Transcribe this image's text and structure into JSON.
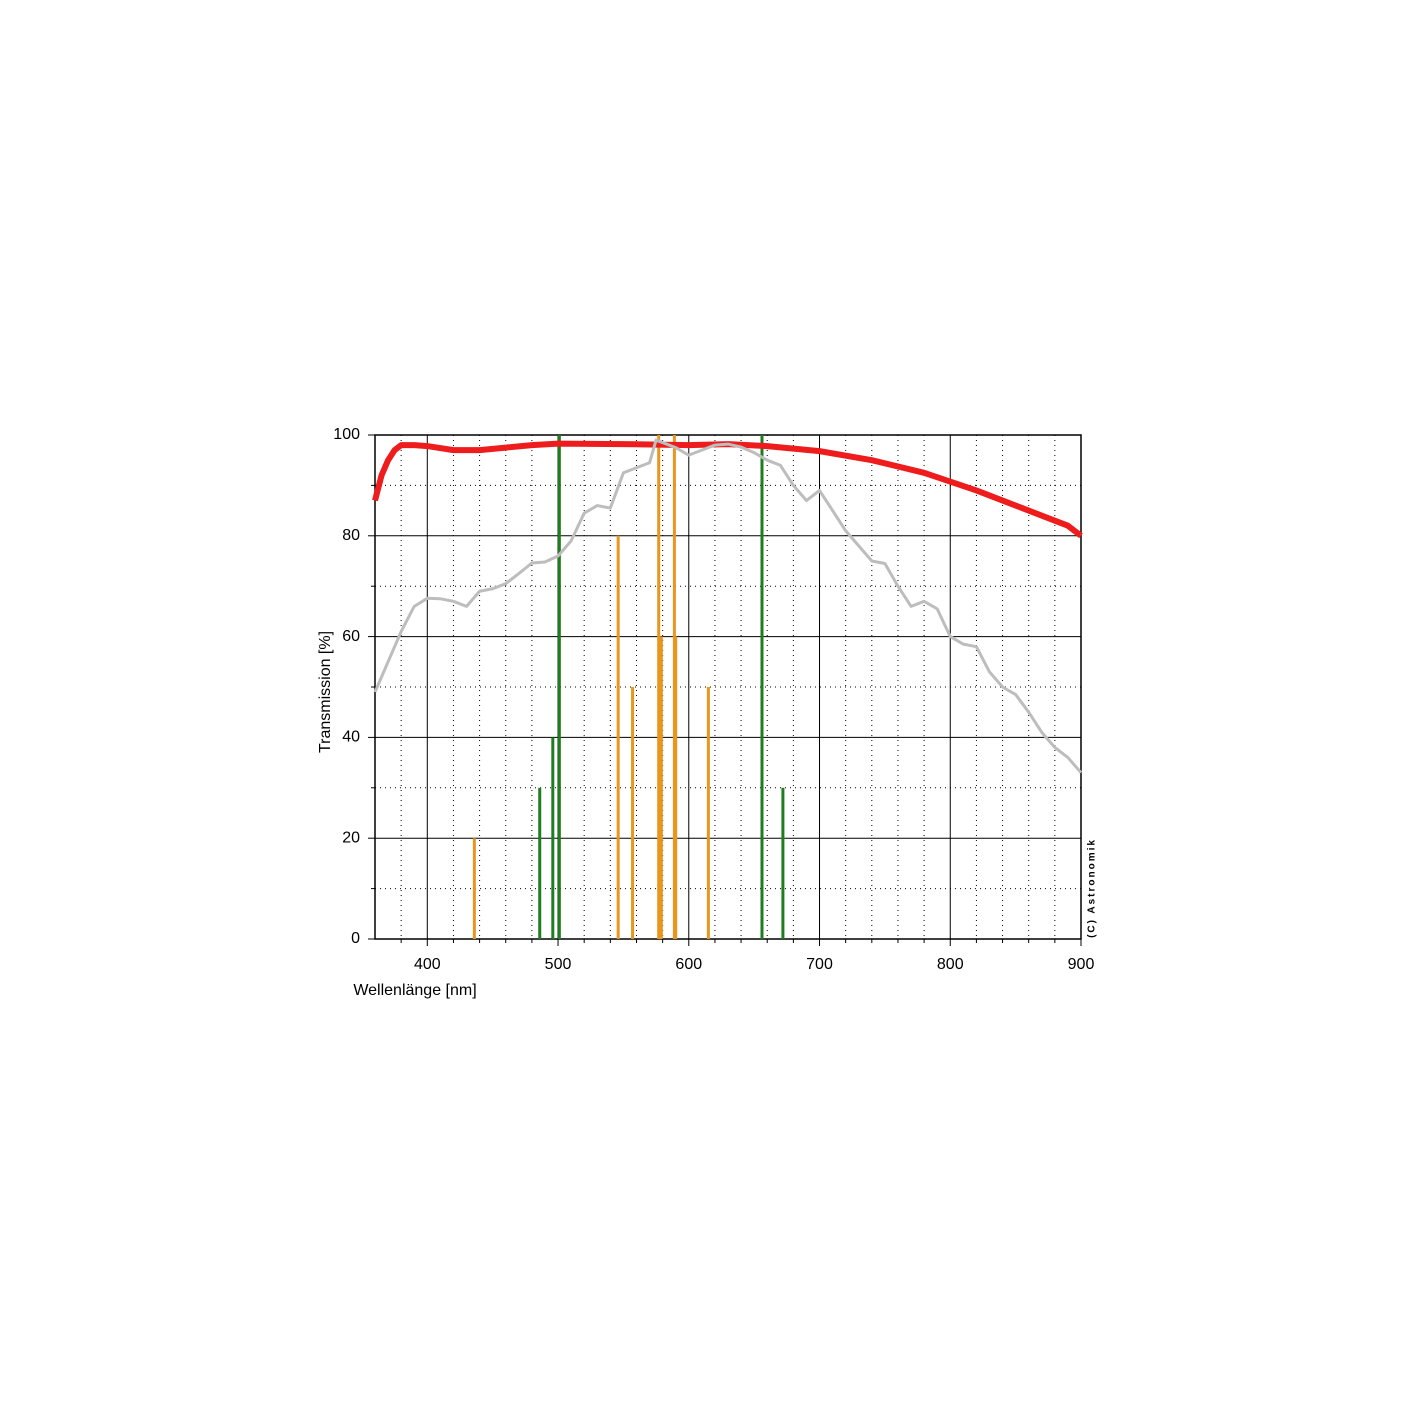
{
  "chart_data": {
    "type": "line",
    "xlabel": "Wellenlänge [nm]",
    "ylabel": "Transmission [%]",
    "annotation": "(C) Astronomik",
    "xlim": [
      360,
      900
    ],
    "ylim": [
      0,
      100
    ],
    "xticks": [
      400,
      500,
      600,
      700,
      800,
      900
    ],
    "yticks": [
      0,
      20,
      40,
      60,
      80,
      100
    ],
    "xminorticks": [
      380,
      420,
      440,
      460,
      480,
      520,
      540,
      560,
      580,
      620,
      640,
      660,
      680,
      720,
      740,
      760,
      780,
      820,
      840,
      860,
      880
    ],
    "yminorticks": [
      10,
      30,
      50,
      70,
      90
    ],
    "grid": true,
    "series": [
      {
        "type": "line",
        "color": "#bdbdbd",
        "width": 3,
        "x": [
          360,
          370,
          380,
          390,
          400,
          410,
          420,
          430,
          440,
          450,
          460,
          470,
          480,
          490,
          500,
          510,
          520,
          530,
          540,
          550,
          560,
          570,
          575,
          580,
          590,
          600,
          610,
          620,
          630,
          640,
          650,
          660,
          670,
          680,
          690,
          700,
          710,
          720,
          730,
          740,
          750,
          760,
          770,
          780,
          790,
          800,
          810,
          820,
          830,
          840,
          850,
          860,
          870,
          880,
          890,
          900
        ],
        "values": [
          49,
          55,
          61,
          66,
          67.6,
          67.5,
          67,
          66,
          69,
          69.5,
          70.5,
          72.5,
          74.6,
          74.8,
          76,
          79,
          84.5,
          86,
          85.5,
          92.5,
          93.5,
          94.5,
          99,
          98.5,
          97.5,
          96,
          97,
          98,
          98.2,
          97.6,
          96.5,
          95,
          94,
          90,
          87,
          89,
          85,
          81,
          78,
          75,
          74.5,
          70,
          66,
          67,
          65.5,
          60,
          58.5,
          58,
          53,
          50,
          48.5,
          45,
          41,
          38,
          36,
          33
        ]
      },
      {
        "type": "line",
        "color": "#ee1c1c",
        "width": 6,
        "x": [
          360,
          365,
          370,
          375,
          380,
          390,
          400,
          420,
          440,
          460,
          480,
          500,
          550,
          600,
          630,
          660,
          700,
          740,
          780,
          820,
          860,
          880,
          890,
          900
        ],
        "values": [
          87,
          92,
          95,
          97,
          98,
          98,
          97.8,
          97,
          97,
          97.5,
          98,
          98.3,
          98.2,
          98,
          98.2,
          97.8,
          96.8,
          95,
          92.5,
          89,
          85,
          83,
          82,
          80
        ]
      },
      {
        "type": "bar",
        "color": "#e8961e",
        "x": [
          436,
          546,
          557,
          577,
          579,
          589,
          590,
          615
        ],
        "values": [
          20,
          80,
          50,
          100,
          60,
          100,
          60,
          50
        ]
      },
      {
        "type": "bar",
        "color": "#1e7d1e",
        "x": [
          486,
          496,
          501,
          656,
          672
        ],
        "values": [
          30,
          40,
          100,
          100,
          30
        ]
      }
    ]
  }
}
